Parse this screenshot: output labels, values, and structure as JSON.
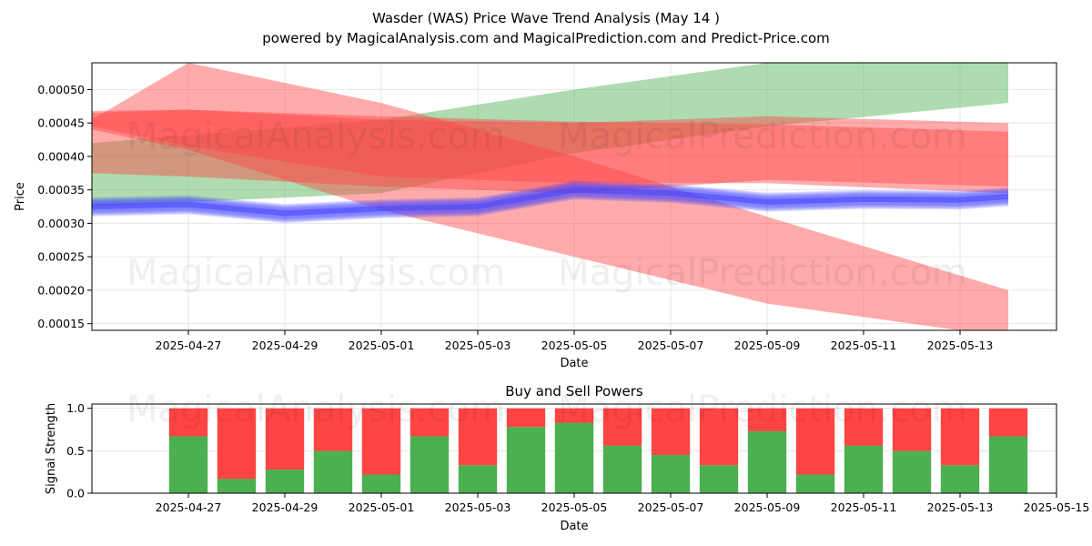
{
  "title": "Wasder (WAS) Price Wave Trend Analysis (May 14 )",
  "subtitle": "powered by MagicalAnalysis.com and MagicalPrediction.com and Predict-Price.com",
  "watermarks": [
    "MagicalAnalysis.com",
    "MagicalPrediction.com"
  ],
  "colors": {
    "green": "#4caf50",
    "red": "#ff4444",
    "blue": "#4444ff",
    "grid": "#e6e6e6"
  },
  "chart_data": [
    {
      "type": "area",
      "xlabel": "Date",
      "ylabel": "Price",
      "xlim": [
        "2025-04-25",
        "2025-05-15"
      ],
      "ylim": [
        0.00014,
        0.00054
      ],
      "x_ticks": [
        "2025-04-27",
        "2025-04-29",
        "2025-05-01",
        "2025-05-03",
        "2025-05-05",
        "2025-05-07",
        "2025-05-09",
        "2025-05-11",
        "2025-05-13"
      ],
      "y_ticks": [
        "0.00015",
        "0.00020",
        "0.00025",
        "0.00030",
        "0.00035",
        "0.00040",
        "0.00045",
        "0.00050"
      ],
      "grid": true,
      "bands": [
        {
          "color": "green",
          "opacity": 0.45,
          "x": [
            "2025-04-25",
            "2025-05-01",
            "2025-05-05",
            "2025-05-09",
            "2025-05-14"
          ],
          "upper": [
            0.00042,
            0.000455,
            0.0005,
            0.00054,
            0.000545
          ],
          "lower": [
            0.000325,
            0.000345,
            0.000405,
            0.000445,
            0.00048
          ]
        },
        {
          "color": "red",
          "opacity": 0.45,
          "x": [
            "2025-04-25",
            "2025-04-27",
            "2025-05-01",
            "2025-05-05",
            "2025-05-09",
            "2025-05-14"
          ],
          "upper": [
            0.000455,
            0.00054,
            0.00048,
            0.0004,
            0.00031,
            0.0002
          ],
          "lower": [
            0.00044,
            0.00041,
            0.00032,
            0.00025,
            0.00018,
            0.00013
          ]
        },
        {
          "color": "red",
          "opacity": 0.45,
          "x": [
            "2025-04-25",
            "2025-04-27",
            "2025-05-01",
            "2025-05-05",
            "2025-05-09",
            "2025-05-14"
          ],
          "upper": [
            0.000468,
            0.00047,
            0.00046,
            0.000452,
            0.000448,
            0.000437
          ],
          "lower": [
            0.000445,
            0.000415,
            0.00037,
            0.00036,
            0.00036,
            0.000345
          ]
        },
        {
          "color": "red",
          "opacity": 0.45,
          "x": [
            "2025-04-25",
            "2025-04-27",
            "2025-05-01",
            "2025-05-05",
            "2025-05-09",
            "2025-05-14"
          ],
          "upper": [
            0.000465,
            0.00047,
            0.000455,
            0.00045,
            0.00046,
            0.00045
          ],
          "lower": [
            0.000375,
            0.00037,
            0.000355,
            0.000345,
            0.000365,
            0.000355
          ]
        }
      ],
      "wave_series": {
        "color": "blue",
        "x": [
          "2025-04-25",
          "2025-04-27",
          "2025-04-29",
          "2025-05-01",
          "2025-05-03",
          "2025-05-05",
          "2025-05-07",
          "2025-05-09",
          "2025-05-11",
          "2025-05-13",
          "2025-05-14"
        ],
        "values": [
          0.000325,
          0.000328,
          0.000315,
          0.000322,
          0.000325,
          0.00035,
          0.000345,
          0.000332,
          0.000336,
          0.000335,
          0.00034
        ],
        "spread": 2.2e-05
      }
    },
    {
      "type": "bar",
      "title": "Buy and Sell Powers",
      "xlabel": "Date",
      "ylabel": "Signal Strength",
      "xlim": [
        "2025-04-25",
        "2025-05-15"
      ],
      "ylim": [
        0,
        1.05
      ],
      "x_ticks": [
        "2025-04-27",
        "2025-04-29",
        "2025-05-01",
        "2025-05-03",
        "2025-05-05",
        "2025-05-07",
        "2025-05-09",
        "2025-05-11",
        "2025-05-13",
        "2025-05-15"
      ],
      "y_ticks": [
        "0.0",
        "0.5",
        "1.0"
      ],
      "grid": true,
      "categories": [
        "2025-04-27",
        "2025-04-28",
        "2025-04-29",
        "2025-04-30",
        "2025-05-01",
        "2025-05-02",
        "2025-05-03",
        "2025-05-04",
        "2025-05-05",
        "2025-05-06",
        "2025-05-07",
        "2025-05-08",
        "2025-05-09",
        "2025-05-10",
        "2025-05-11",
        "2025-05-12",
        "2025-05-13",
        "2025-05-14"
      ],
      "series": [
        {
          "color": "green",
          "values": [
            0.67,
            0.17,
            0.28,
            0.5,
            0.22,
            0.67,
            0.33,
            0.78,
            0.83,
            0.56,
            0.45,
            0.33,
            0.73,
            0.22,
            0.56,
            0.5,
            0.33,
            0.67
          ]
        },
        {
          "color": "red",
          "values": [
            0.33,
            0.83,
            0.72,
            0.5,
            0.78,
            0.33,
            0.67,
            0.22,
            0.17,
            0.44,
            0.55,
            0.67,
            0.27,
            0.78,
            0.44,
            0.5,
            0.67,
            0.33
          ]
        }
      ]
    }
  ]
}
